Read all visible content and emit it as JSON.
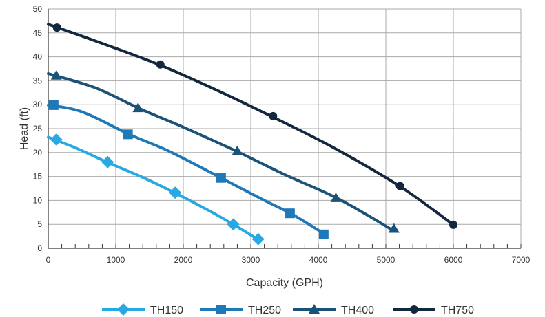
{
  "chart_data": {
    "type": "line",
    "xlabel": "Capacity (GPH)",
    "ylabel": "Head (ft)",
    "xlim": [
      0,
      7000
    ],
    "ylim": [
      0,
      50
    ],
    "x_ticks": [
      0,
      1000,
      2000,
      3000,
      4000,
      5000,
      6000,
      7000
    ],
    "y_ticks": [
      0,
      5,
      10,
      15,
      20,
      25,
      30,
      35,
      40,
      45,
      50
    ],
    "grid": true,
    "legend_position": "bottom",
    "series": [
      {
        "name": "TH150",
        "color": "#29a9e1",
        "marker": "diamond",
        "curve_x": [
          0,
          400,
          900,
          1400,
          1900,
          2400,
          2750,
          3100
        ],
        "curve_y": [
          23.2,
          21.0,
          17.8,
          14.8,
          11.4,
          7.7,
          4.9,
          1.9
        ],
        "marker_x": [
          120,
          880,
          1880,
          2740,
          3110
        ],
        "marker_y": [
          22.7,
          18.0,
          11.6,
          5.0,
          1.9
        ]
      },
      {
        "name": "TH250",
        "color": "#1f78b8",
        "marker": "square",
        "curve_x": [
          0,
          500,
          1200,
          1800,
          2600,
          3200,
          3600,
          4100
        ],
        "curve_y": [
          29.9,
          28.5,
          23.8,
          20.2,
          14.4,
          10.0,
          7.2,
          2.9
        ],
        "marker_x": [
          80,
          1180,
          2560,
          3580,
          4080
        ],
        "marker_y": [
          29.9,
          23.8,
          14.7,
          7.3,
          2.9
        ]
      },
      {
        "name": "TH400",
        "color": "#1b5278",
        "marker": "triangle",
        "curve_x": [
          0,
          700,
          1350,
          2000,
          2800,
          3500,
          4300,
          5100
        ],
        "curve_y": [
          36.5,
          33.5,
          29.2,
          25.3,
          20.2,
          15.4,
          10.3,
          3.8
        ],
        "marker_x": [
          120,
          1330,
          2800,
          4260,
          5120
        ],
        "marker_y": [
          36.1,
          29.3,
          20.3,
          10.5,
          4.1
        ]
      },
      {
        "name": "TH750",
        "color": "#13273e",
        "marker": "circle",
        "curve_x": [
          0,
          800,
          1650,
          2500,
          3300,
          4200,
          5200,
          6000
        ],
        "curve_y": [
          46.8,
          42.8,
          38.3,
          33.0,
          27.6,
          21.2,
          13.0,
          4.9
        ],
        "marker_x": [
          130,
          1660,
          3330,
          5210,
          6000
        ],
        "marker_y": [
          46.1,
          38.4,
          27.6,
          13.0,
          4.9
        ]
      }
    ]
  }
}
